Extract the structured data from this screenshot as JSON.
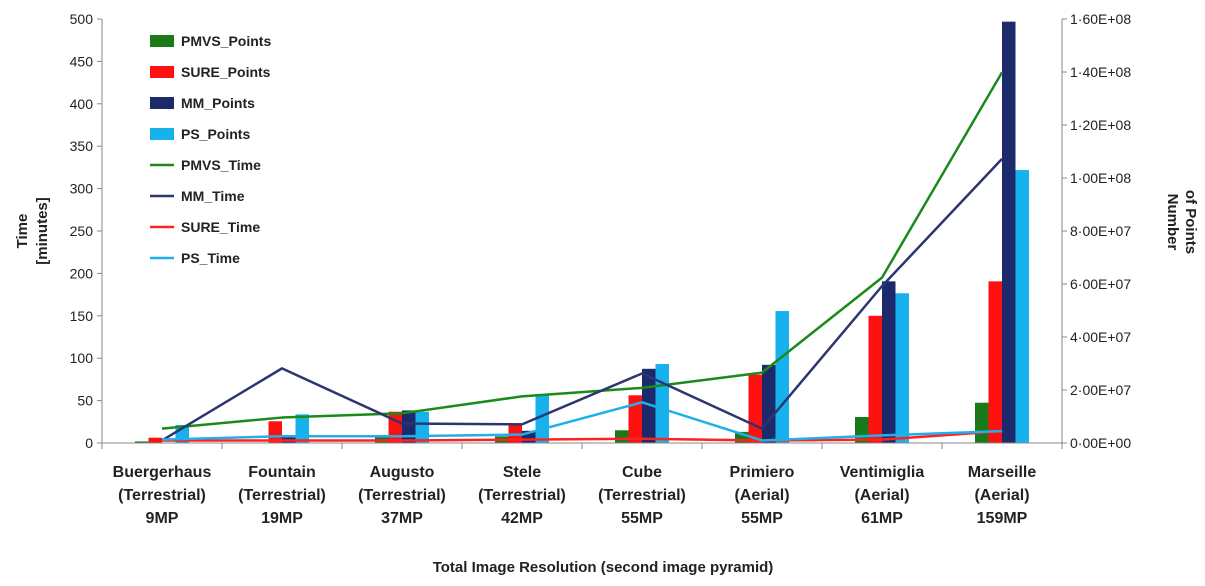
{
  "chart_data": {
    "type": "bar",
    "title": "",
    "xlabel": "Total Image Resolution (second  image pyramid)",
    "ylabel": [
      "Time",
      "[minutes]"
    ],
    "y2label": [
      "Number",
      "of Points"
    ],
    "categories": [
      [
        "Buergerhaus",
        "(Terrestrial)",
        "9MP"
      ],
      [
        "Fountain",
        "(Terrestrial)",
        "19MP"
      ],
      [
        "Augusto",
        "(Terrestrial)",
        "37MP"
      ],
      [
        "Stele",
        "(Terrestrial)",
        "42MP"
      ],
      [
        "Cube",
        "(Terrestrial)",
        "55MP"
      ],
      [
        "Primiero",
        "(Aerial)",
        "55MP"
      ],
      [
        "Ventimiglia",
        "(Aerial)",
        "61MP"
      ],
      [
        "Marseille",
        "(Aerial)",
        "159MP"
      ]
    ],
    "ylim": [
      0,
      500
    ],
    "yticks": [
      "0",
      "50",
      "100",
      "150",
      "200",
      "250",
      "300",
      "350",
      "400",
      "450",
      "500"
    ],
    "y2lim": [
      0,
      160000000
    ],
    "y2ticks": [
      "0·00E+00",
      "2·00E+07",
      "4·00E+07",
      "6·00E+07",
      "8·00E+07",
      "1·00E+08",
      "1·20E+08",
      "1·40E+08",
      "1·60E+08"
    ],
    "bar_series": [
      {
        "name": "PMVS_Points",
        "color": "#1a7a1a",
        "values": [
          600000,
          0,
          2500000,
          2500000,
          4800000,
          4200000,
          9800000,
          15200000
        ]
      },
      {
        "name": "SURE_Points",
        "color": "#ff1010",
        "values": [
          2000000,
          8200000,
          11800000,
          7200000,
          18000000,
          25800000,
          48000000,
          61000000
        ]
      },
      {
        "name": "MM_Points",
        "color": "#1c2a6b",
        "values": [
          0,
          3000000,
          12300000,
          4600000,
          28000000,
          29500000,
          61000000,
          159000000
        ]
      },
      {
        "name": "PS_Points",
        "color": "#17b2ee",
        "values": [
          6800000,
          10800000,
          11800000,
          18500000,
          29800000,
          49800000,
          56500000,
          103000000
        ]
      }
    ],
    "line_series": [
      {
        "name": "PMVS_Time",
        "color": "#1a8a1a",
        "values": [
          17,
          30,
          35,
          55,
          65,
          83,
          195,
          437
        ]
      },
      {
        "name": "MM_Time",
        "color": "#2c3570",
        "values": [
          3,
          88,
          23,
          22,
          82,
          17,
          185,
          335
        ]
      },
      {
        "name": "SURE_Time",
        "color": "#ff2020",
        "values": [
          3,
          3,
          3,
          4,
          5,
          3,
          4,
          14
        ]
      },
      {
        "name": "PS_Time",
        "color": "#1fb0ec",
        "values": [
          4,
          8,
          8,
          10,
          48,
          3,
          9,
          14
        ]
      }
    ],
    "legend": [
      "PMVS_Points",
      "SURE_Points",
      "MM_Points",
      "PS_Points",
      "PMVS_Time",
      "MM_Time",
      "SURE_Time",
      "PS_Time"
    ],
    "legend_position": "top-left",
    "grid": false
  }
}
